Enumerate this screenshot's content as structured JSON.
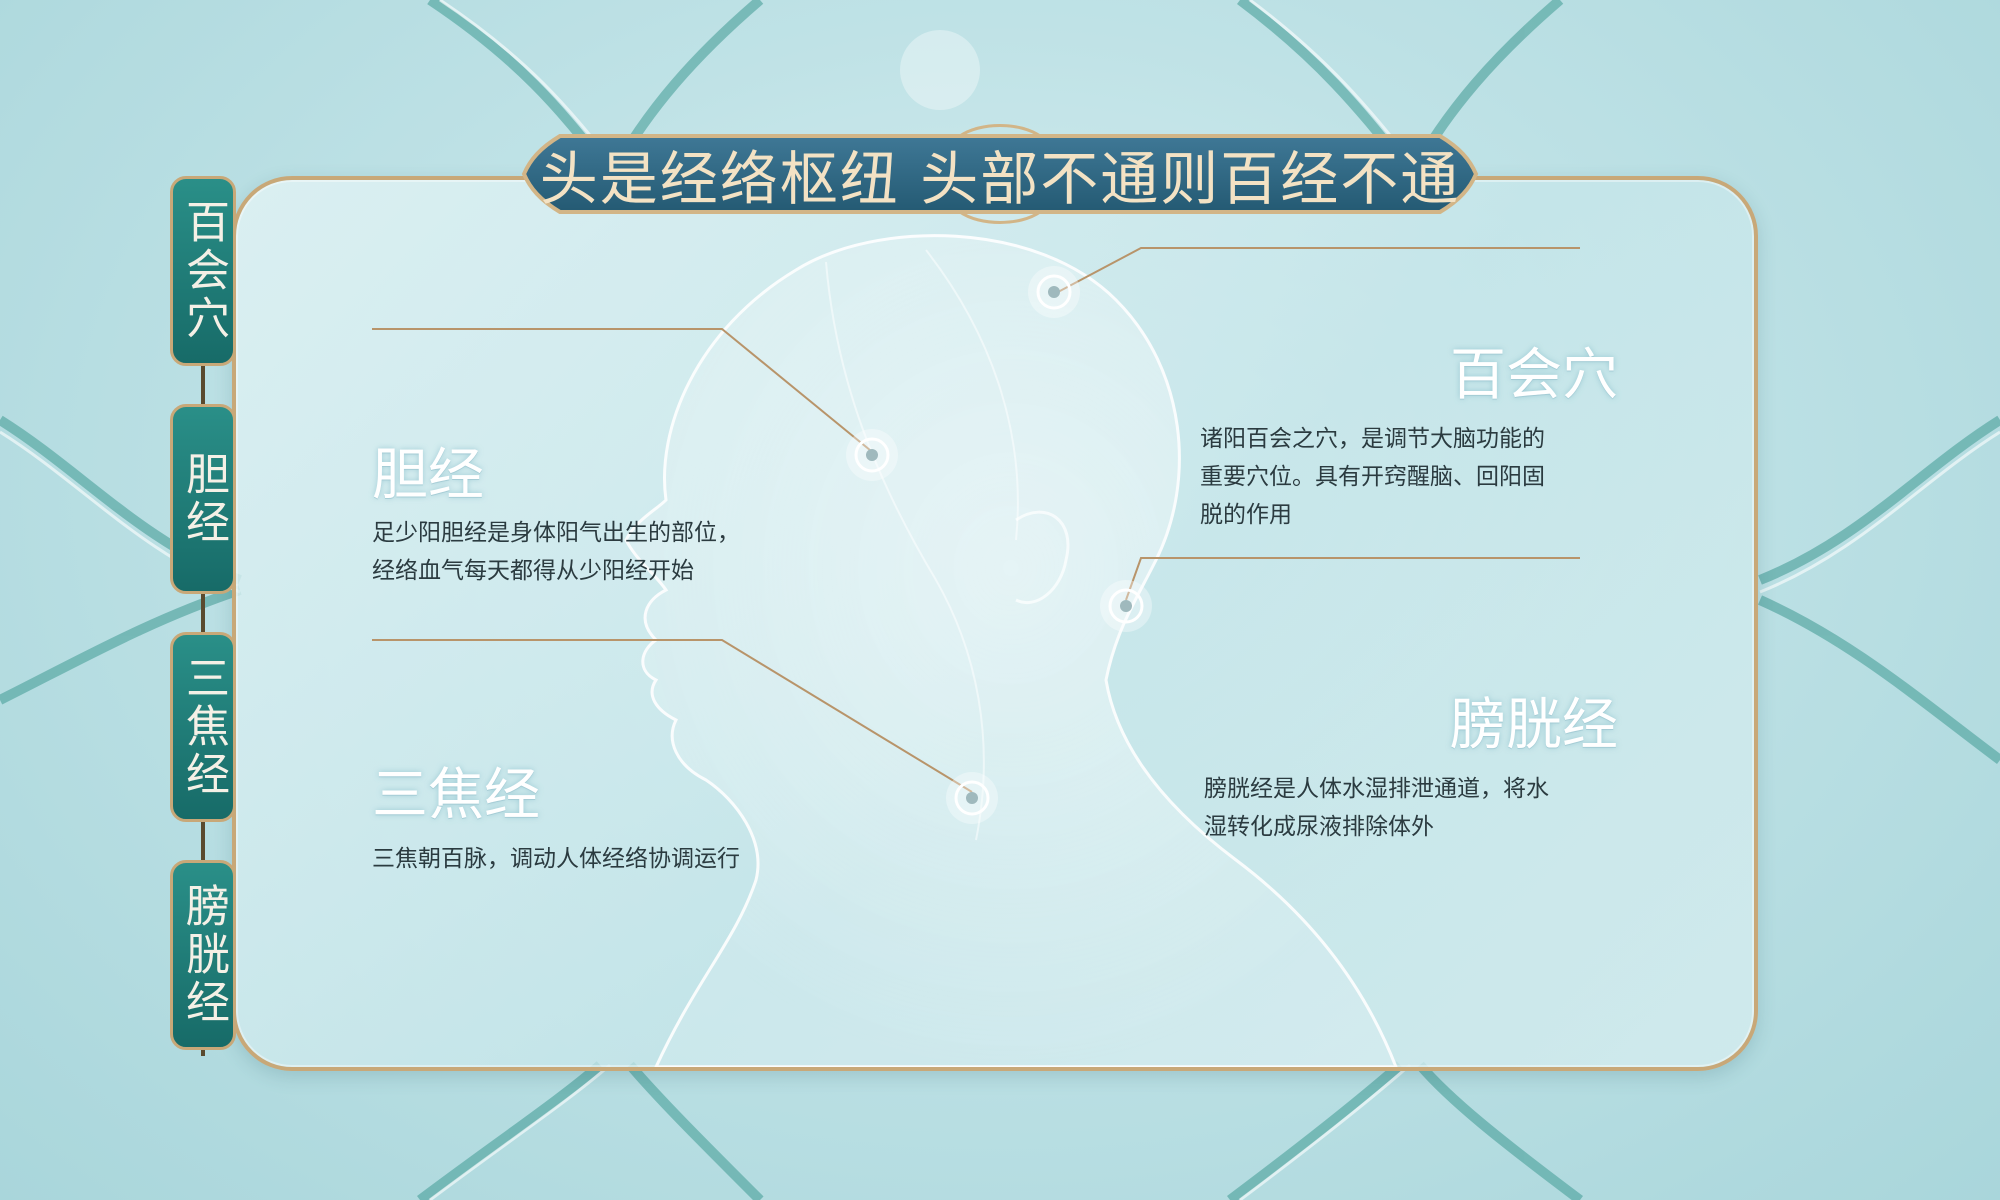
{
  "banner": {
    "title": "头是经络枢纽 头部不通则百经不通"
  },
  "tabs": [
    "百会穴",
    "胆经",
    "三焦经",
    "膀胱经"
  ],
  "sections": {
    "baihui": {
      "title": "百会穴",
      "lines": [
        "诸阳百会之穴，是调节大脑功能的",
        "重要穴位。具有开窍醒脑、回阳固",
        "脱的作用"
      ]
    },
    "danjing": {
      "title": "胆经",
      "lines": [
        "足少阳胆经是身体阳气出生的部位，",
        "经络血气每天都得从少阳经开始"
      ]
    },
    "sanjiao": {
      "title": "三焦经",
      "lines": [
        "三焦朝百脉，调动人体经络协调运行"
      ]
    },
    "pangguang": {
      "title": "膀胱经",
      "lines": [
        "膀胱经是人体水湿排泄通道，将水",
        "湿转化成尿液排除体外"
      ]
    }
  },
  "colors": {
    "accent_gold": "#c8a878",
    "tab_teal": "#1f7d78",
    "banner_blue": "#2e6783"
  }
}
